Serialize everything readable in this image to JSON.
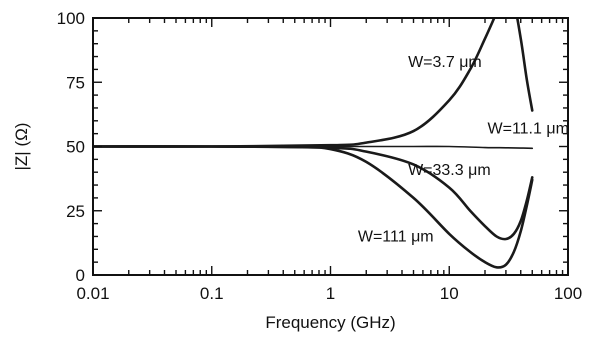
{
  "chart_data": {
    "type": "line",
    "title": "",
    "xlabel": "Frequency (GHz)",
    "ylabel": "|Z| (Ω)",
    "x_scale": "log",
    "xlim": [
      0.01,
      100
    ],
    "ylim": [
      0,
      100
    ],
    "x_ticks": [
      0.01,
      0.1,
      1,
      10,
      100
    ],
    "x_tick_labels": [
      "0.01",
      "0.1",
      "1",
      "10",
      "100"
    ],
    "y_ticks": [
      0,
      25,
      50,
      75,
      100
    ],
    "y_tick_labels": [
      "0",
      "25",
      "50",
      "75",
      "100"
    ],
    "grid": false,
    "legend": "none",
    "line_color": "#1a1a1a",
    "series": [
      {
        "name": "W=3.7 μm",
        "x": [
          0.01,
          0.1,
          1,
          2,
          5,
          10,
          15,
          20,
          25,
          30,
          35,
          40,
          45,
          50
        ],
        "y": [
          50,
          50,
          50.5,
          51.5,
          56,
          68,
          80,
          92,
          102,
          110,
          106,
          92,
          76,
          64
        ]
      },
      {
        "name": "W=11.1 μm",
        "x": [
          0.01,
          0.1,
          1,
          2,
          5,
          10,
          20,
          30,
          40,
          50
        ],
        "y": [
          50,
          50,
          50,
          50,
          50,
          50,
          49.6,
          49.5,
          49.4,
          49.3
        ]
      },
      {
        "name": "W=33.3 μm",
        "x": [
          0.01,
          0.1,
          1,
          2,
          5,
          10,
          15,
          20,
          25,
          30,
          35,
          40,
          45,
          50
        ],
        "y": [
          50,
          50,
          49.5,
          48,
          43,
          34,
          25,
          19,
          15,
          14,
          16,
          21,
          29,
          38
        ]
      },
      {
        "name": "W=111 μm",
        "x": [
          0.01,
          0.1,
          0.5,
          1,
          2,
          5,
          10,
          15,
          20,
          25,
          30,
          35,
          40,
          45,
          50
        ],
        "y": [
          50,
          50,
          49.8,
          49,
          44,
          30,
          16,
          9,
          5,
          3,
          4,
          9,
          17,
          27,
          37
        ]
      }
    ],
    "annotations": [
      {
        "text": "W=3.7 μm",
        "x": 4.5,
        "y": 81
      },
      {
        "text": "W=11.1 μm",
        "x": 21,
        "y": 55
      },
      {
        "text": "W=33.3 μm",
        "x": 4.5,
        "y": 39
      },
      {
        "text": "W=111 μm",
        "x": 1.7,
        "y": 13
      }
    ]
  }
}
